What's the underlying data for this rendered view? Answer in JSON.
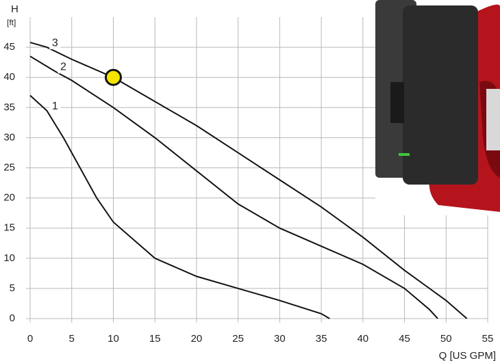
{
  "chart_data": {
    "type": "line",
    "y_label_top": "H",
    "y_label_unit": "[ft]",
    "x_label": "Q [US GPM]",
    "xlim": [
      0,
      55
    ],
    "xticks": [
      0,
      5,
      10,
      15,
      20,
      25,
      30,
      35,
      40,
      45,
      50,
      55
    ],
    "ylim": [
      0,
      50
    ],
    "yticks": [
      0,
      5,
      10,
      15,
      20,
      25,
      30,
      35,
      40,
      45
    ],
    "grid": true,
    "series": [
      {
        "name": "1",
        "color": "#111111",
        "x": [
          0,
          2,
          4,
          6,
          8,
          10,
          15,
          20,
          25,
          30,
          35,
          36
        ],
        "values": [
          37,
          34.5,
          30,
          25,
          20,
          16,
          10,
          7,
          5,
          3,
          0.8,
          0
        ]
      },
      {
        "name": "2",
        "color": "#111111",
        "x": [
          0,
          3,
          5,
          10,
          15,
          20,
          25,
          30,
          35,
          40,
          45,
          48,
          49
        ],
        "values": [
          43.5,
          41,
          39.5,
          35,
          30,
          24.5,
          19,
          15,
          12,
          9,
          5,
          1.5,
          0
        ]
      },
      {
        "name": "3",
        "color": "#111111",
        "x": [
          0,
          2,
          5,
          10,
          15,
          20,
          25,
          30,
          35,
          40,
          45,
          50,
          52.5
        ],
        "values": [
          45.8,
          45,
          43,
          40,
          36,
          32,
          27.5,
          23,
          18.5,
          13.5,
          8,
          3,
          0
        ]
      }
    ],
    "marker": {
      "x": 10,
      "y": 40,
      "color": "#f5e400"
    }
  }
}
